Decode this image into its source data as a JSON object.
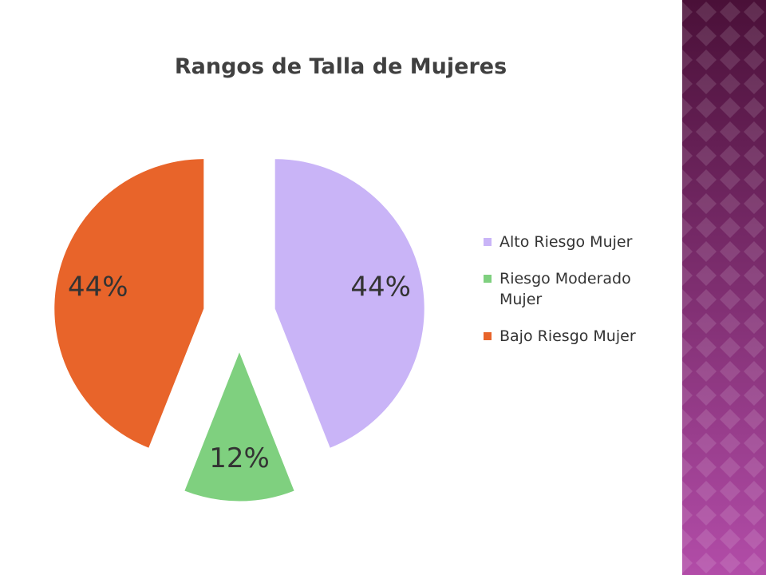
{
  "chart_data": {
    "type": "pie",
    "title": "Rangos de Talla de Mujeres",
    "categories": [
      "Alto Riesgo Mujer",
      "Riesgo Moderado Mujer",
      "Bajo Riesgo Mujer"
    ],
    "values": [
      44,
      12,
      44
    ],
    "value_labels": [
      "44%",
      "12%",
      "44%"
    ],
    "colors": [
      "#c9b4f7",
      "#7fd07f",
      "#e8642a"
    ],
    "legend": "right"
  }
}
